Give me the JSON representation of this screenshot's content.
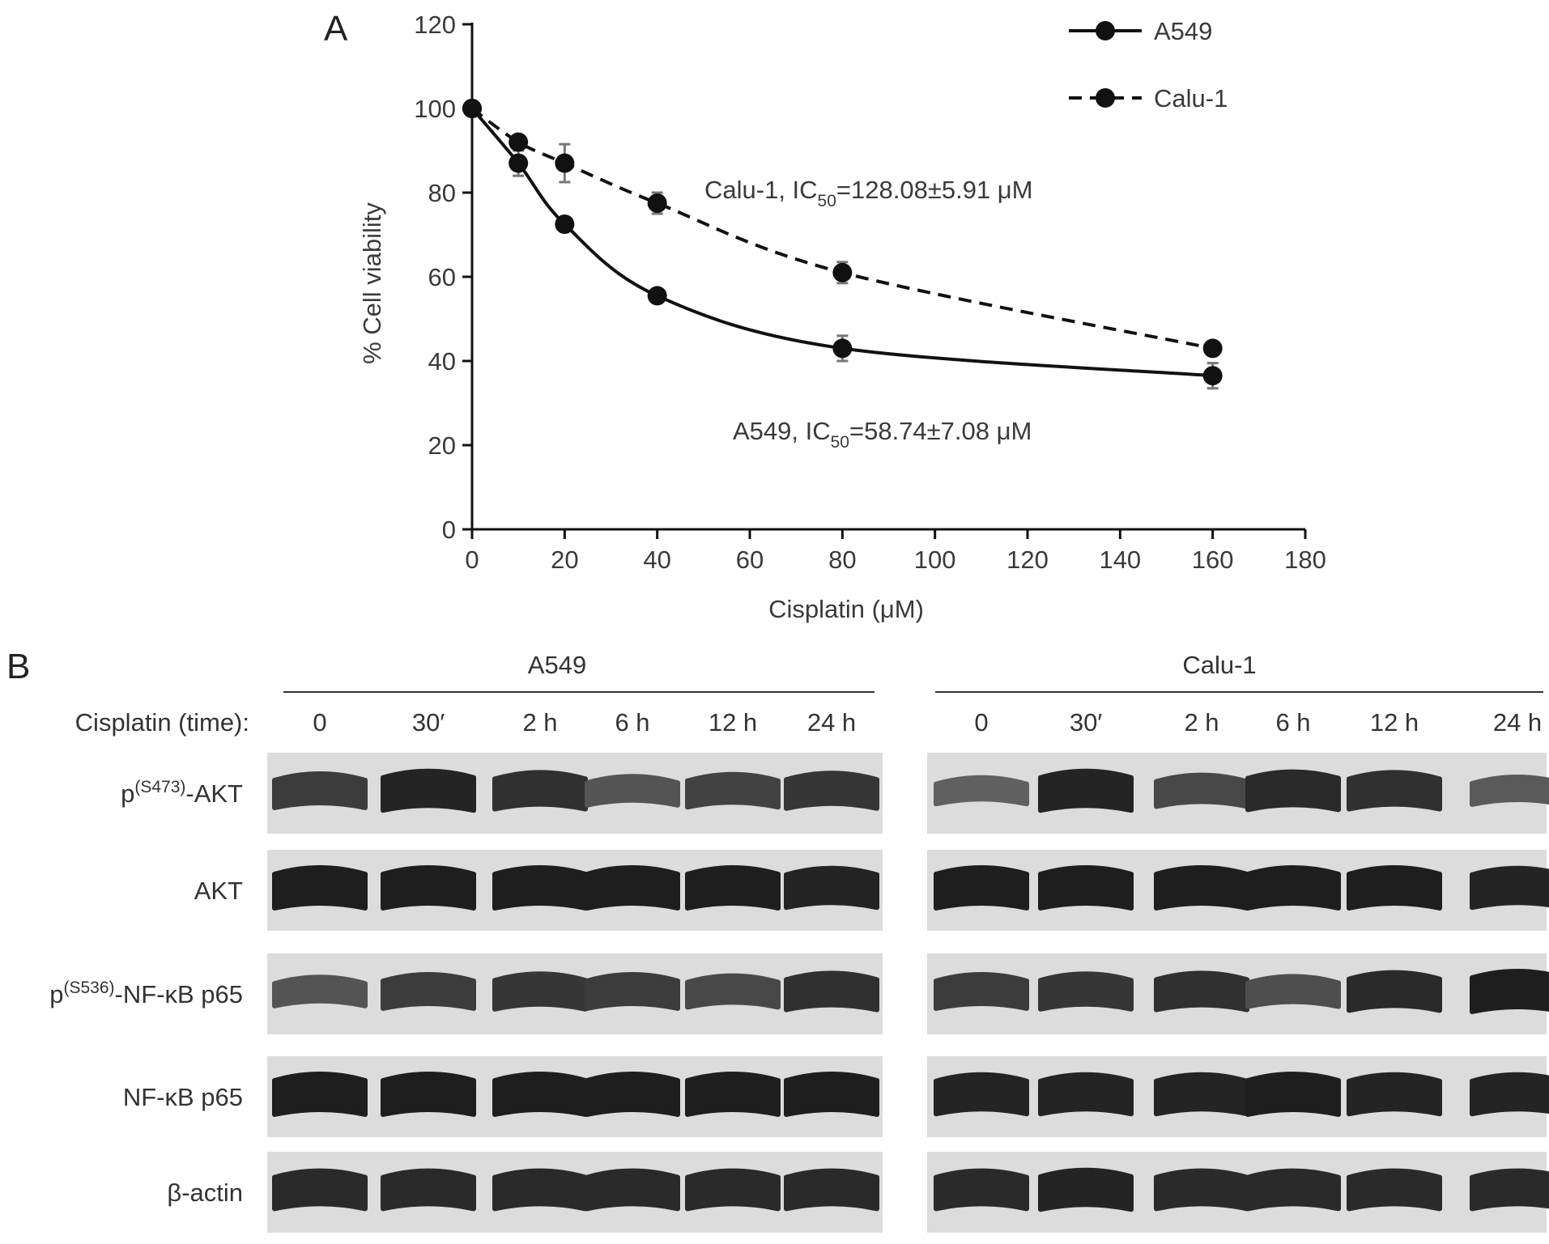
{
  "panel_a": {
    "letter": "A",
    "chart_data": {
      "type": "line",
      "xlabel": "Cisplatin (μM)",
      "ylabel": "% Cell viability",
      "xlim": [
        0,
        180
      ],
      "ylim": [
        0,
        120
      ],
      "x_ticks": [
        "0",
        "20",
        "40",
        "60",
        "80",
        "100",
        "120",
        "140",
        "160",
        "180"
      ],
      "y_ticks": [
        "0",
        "20",
        "40",
        "60",
        "80",
        "100",
        "120"
      ],
      "grid": false,
      "legend_position": "top-right",
      "series": [
        {
          "name": "A549",
          "line_style": "solid",
          "x": [
            0,
            10,
            20,
            40,
            80,
            160
          ],
          "values": [
            100,
            87,
            72.5,
            55.5,
            43,
            36.5
          ],
          "errors": [
            1,
            3,
            1.5,
            1.5,
            3,
            3
          ]
        },
        {
          "name": "Calu-1",
          "line_style": "dashed",
          "x": [
            0,
            10,
            20,
            40,
            80,
            160
          ],
          "values": [
            100,
            92,
            87,
            77.5,
            61,
            43
          ],
          "errors": [
            1,
            1.5,
            4.5,
            2.5,
            2.5,
            1.5
          ]
        }
      ],
      "annotations": {
        "calu1": {
          "pre": "Calu-1, IC",
          "sub": "50",
          "post": "=128.08±5.91 μM"
        },
        "a549": {
          "pre": "A549, IC",
          "sub": "50",
          "post": "=58.74±7.08 μM"
        }
      }
    }
  },
  "panel_b": {
    "letter": "B",
    "side_label": "Cisplatin (time):",
    "groups": [
      "A549",
      "Calu-1"
    ],
    "lanes": [
      "0",
      "30′",
      "2 h",
      "6 h",
      "12 h",
      "24 h"
    ],
    "rows": [
      {
        "pre": "p",
        "sup": "(S473)",
        "post": "-AKT",
        "intensity": [
          [
            0.75,
            0.95,
            0.85,
            0.55,
            0.7,
            0.8
          ],
          [
            0.45,
            0.95,
            0.65,
            0.9,
            0.85,
            0.5
          ]
        ]
      },
      {
        "pre": "",
        "sup": "",
        "post": "AKT",
        "intensity": [
          [
            1,
            1,
            1,
            1,
            1,
            0.95
          ],
          [
            1,
            1,
            1,
            1,
            1,
            0.95
          ]
        ]
      },
      {
        "pre": "p",
        "sup": "(S536)",
        "post": "-NF-κB p65",
        "intensity": [
          [
            0.55,
            0.75,
            0.8,
            0.75,
            0.65,
            0.85
          ],
          [
            0.75,
            0.8,
            0.85,
            0.6,
            0.9,
            1
          ]
        ]
      },
      {
        "pre": "",
        "sup": "",
        "post": "NF-κB p65",
        "intensity": [
          [
            1,
            1,
            1,
            1,
            1,
            1
          ],
          [
            0.95,
            0.95,
            0.95,
            1,
            0.95,
            0.95
          ]
        ]
      },
      {
        "pre": "",
        "sup": "",
        "post": "β-actin",
        "intensity": [
          [
            0.9,
            0.9,
            0.9,
            0.9,
            0.9,
            0.9
          ],
          [
            0.9,
            0.95,
            0.9,
            0.9,
            0.9,
            0.9
          ]
        ]
      }
    ]
  }
}
